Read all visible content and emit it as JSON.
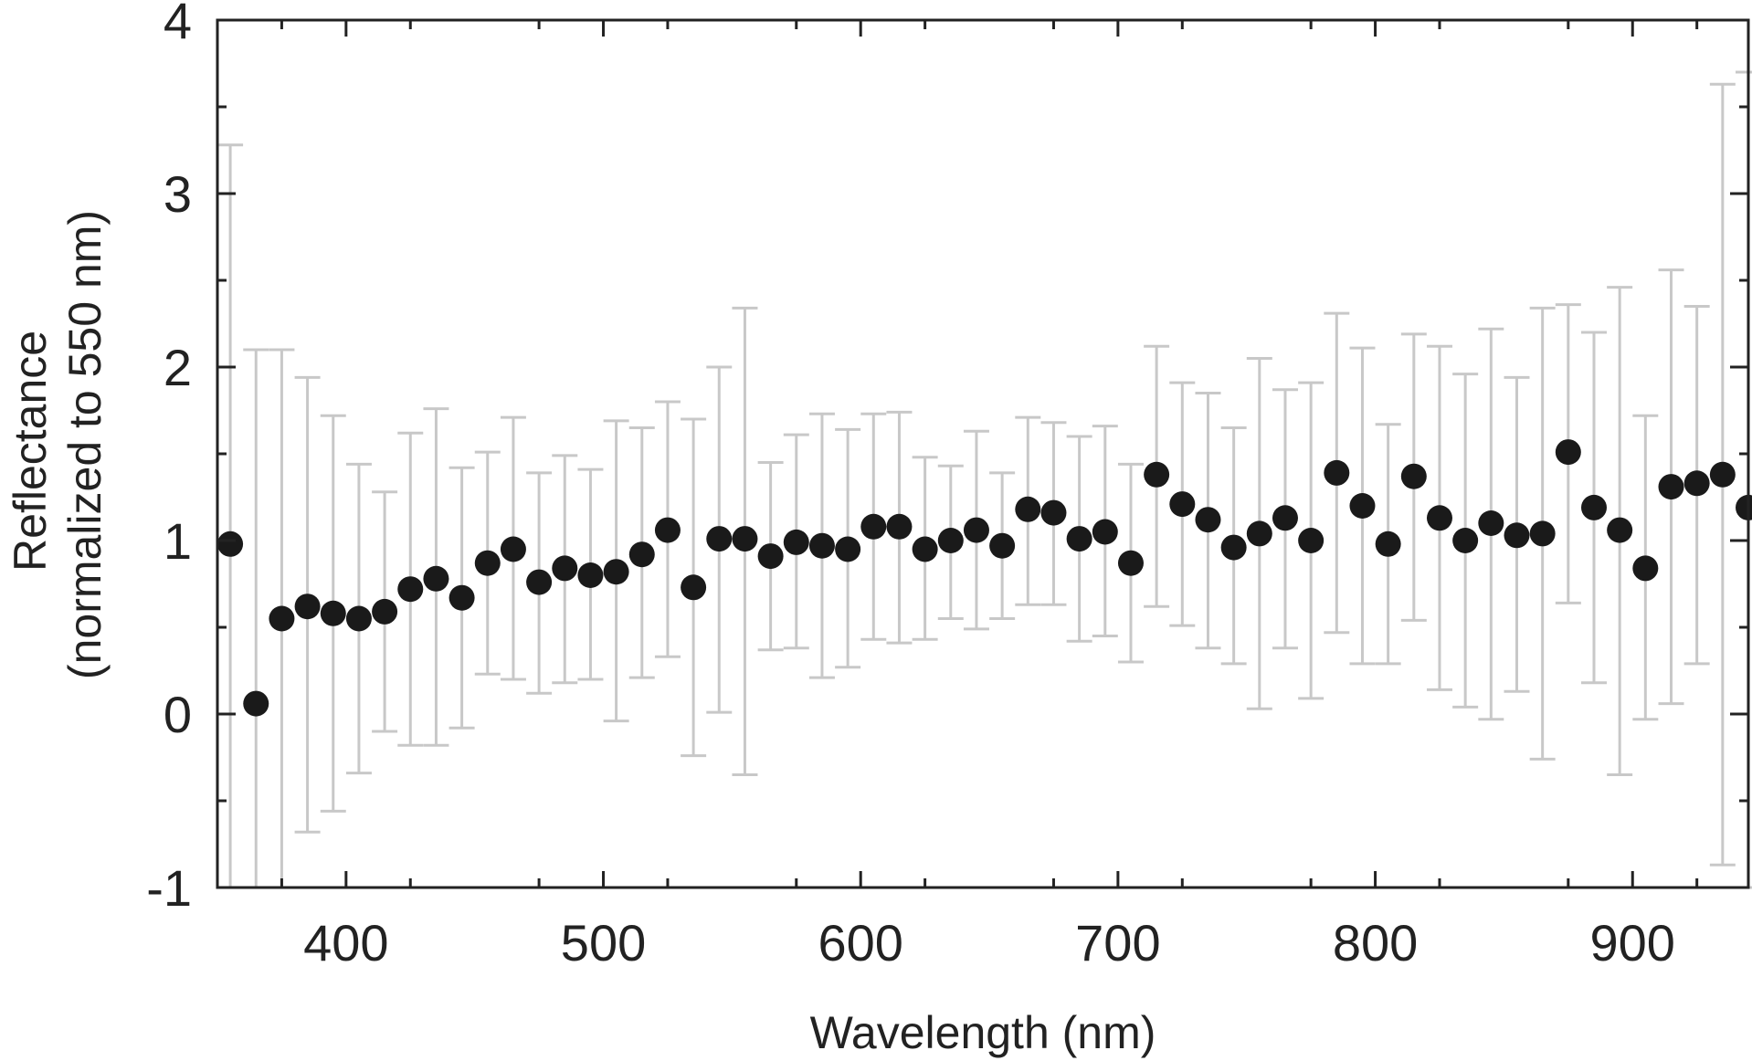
{
  "chart_data": {
    "type": "scatter",
    "title": "",
    "xlabel": "Wavelength (nm)",
    "ylabel_line1": "Reflectance",
    "ylabel_line2": "(normalized to 550 nm)",
    "xlim": [
      350,
      945
    ],
    "ylim": [
      -1,
      4
    ],
    "x_ticks": [
      400,
      500,
      600,
      700,
      800,
      900
    ],
    "y_ticks": [
      -1,
      0,
      1,
      2,
      3,
      4
    ],
    "grid": false,
    "colors": {
      "marker": "#1a1a1a",
      "errorbar": "#c8c8c8",
      "axis": "#222222"
    },
    "series": [
      {
        "x": [
          355,
          365,
          375,
          385,
          395,
          405,
          415,
          425,
          435,
          445,
          455,
          465,
          475,
          485,
          495,
          505,
          515,
          525,
          535,
          545,
          555,
          565,
          575,
          585,
          595,
          605,
          615,
          625,
          635,
          645,
          655,
          665,
          675,
          685,
          695,
          705,
          715,
          725,
          735,
          745,
          755,
          765,
          775,
          785,
          795,
          805,
          815,
          825,
          835,
          845,
          855,
          865,
          875,
          885,
          895,
          905,
          915,
          925,
          935,
          945
        ],
        "y": [
          0.98,
          0.06,
          0.55,
          0.62,
          0.58,
          0.55,
          0.59,
          0.72,
          0.78,
          0.67,
          0.87,
          0.95,
          0.76,
          0.84,
          0.8,
          0.82,
          0.92,
          1.06,
          0.73,
          1.01,
          1.01,
          0.91,
          0.99,
          0.97,
          0.95,
          1.08,
          1.08,
          0.95,
          1.0,
          1.06,
          0.97,
          1.18,
          1.16,
          1.01,
          1.05,
          0.87,
          1.38,
          1.21,
          1.12,
          0.96,
          1.04,
          1.13,
          1.0,
          1.39,
          1.2,
          0.98,
          1.37,
          1.13,
          1.0,
          1.1,
          1.03,
          1.04,
          1.51,
          1.19,
          1.06,
          0.84,
          1.31,
          1.33,
          1.38,
          1.19
        ],
        "y_low": [
          -1.0,
          -1.0,
          -1.0,
          -0.68,
          -0.56,
          -0.34,
          -0.1,
          -0.18,
          -0.18,
          -0.08,
          0.23,
          0.2,
          0.12,
          0.18,
          0.2,
          -0.04,
          0.21,
          0.33,
          -0.24,
          0.01,
          -0.35,
          0.37,
          0.38,
          0.21,
          0.27,
          0.43,
          0.41,
          0.43,
          0.55,
          0.49,
          0.55,
          0.63,
          0.63,
          0.42,
          0.45,
          0.3,
          0.62,
          0.51,
          0.38,
          0.29,
          0.03,
          0.38,
          0.09,
          0.47,
          0.29,
          0.29,
          0.54,
          0.14,
          0.04,
          -0.03,
          0.13,
          -0.26,
          0.64,
          0.18,
          -0.35,
          -0.03,
          0.06,
          0.29,
          -0.87,
          -1.0
        ],
        "y_high": [
          3.28,
          2.1,
          2.1,
          1.94,
          1.72,
          1.44,
          1.28,
          1.62,
          1.76,
          1.42,
          1.51,
          1.71,
          1.39,
          1.49,
          1.41,
          1.69,
          1.65,
          1.8,
          1.7,
          2.0,
          2.34,
          1.45,
          1.61,
          1.73,
          1.64,
          1.73,
          1.74,
          1.48,
          1.43,
          1.63,
          1.39,
          1.71,
          1.68,
          1.6,
          1.66,
          1.44,
          2.12,
          1.91,
          1.85,
          1.65,
          2.05,
          1.87,
          1.91,
          2.31,
          2.11,
          1.67,
          2.19,
          2.12,
          1.96,
          2.22,
          1.94,
          2.34,
          2.36,
          2.2,
          2.46,
          1.72,
          2.56,
          2.35,
          3.63,
          3.7
        ]
      }
    ]
  }
}
